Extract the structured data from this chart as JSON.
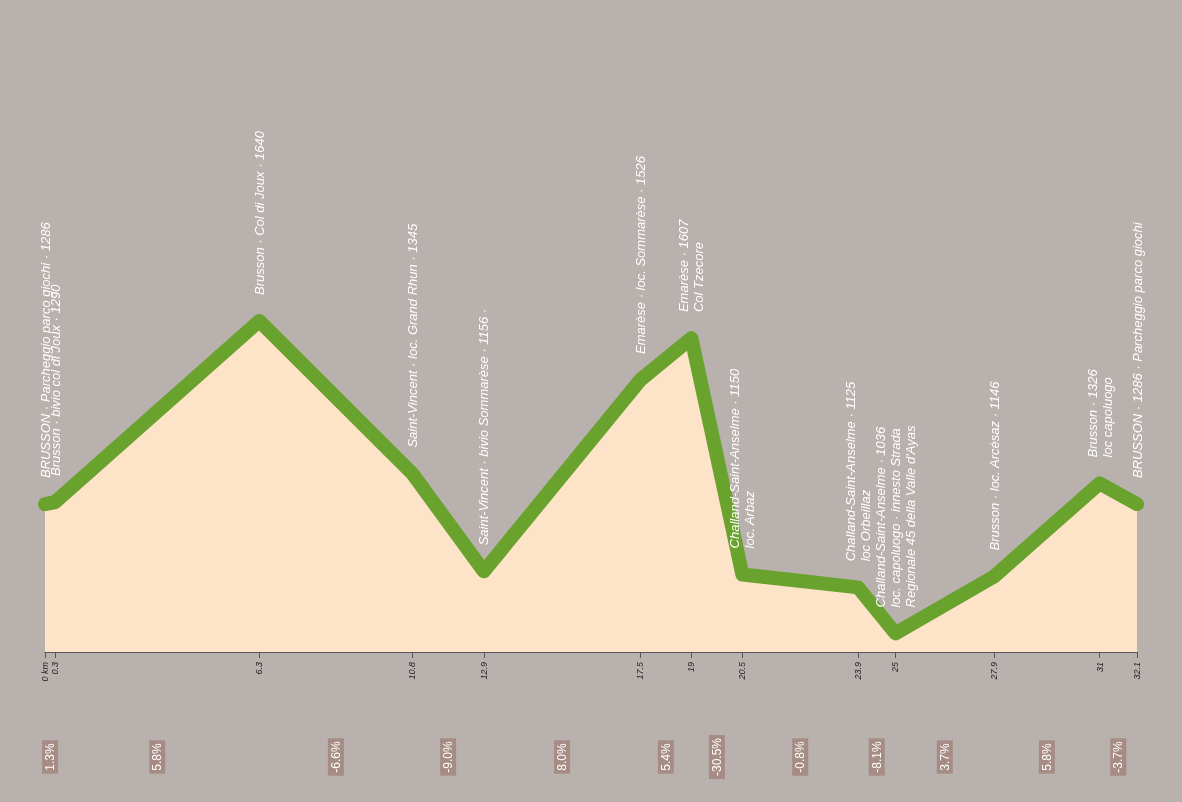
{
  "chart_data": {
    "type": "area",
    "x": [
      0,
      0.3,
      6.3,
      10.8,
      12.9,
      17.5,
      19,
      20.5,
      23.9,
      25,
      27.9,
      31,
      32.1
    ],
    "values": [
      1286,
      1290,
      1640,
      1345,
      1156,
      1526,
      1607,
      1150,
      1125,
      1036,
      1146,
      1326,
      1286
    ],
    "value_labels": [
      "BRUSSON · Parcheggio parco giochi · 1286",
      "Brusson · bivio col di Joux · 1290",
      "Brusson · Col di Joux · 1640",
      "Saint-Vincent · loc. Grand Rhun · 1345",
      "Saint-Vincent · bivio Sommarèse · 1156 ·",
      "Emarèse · loc. Sommarèse · 1526",
      "Emarèse · 1607\nCol Tzecore",
      "Challand-Saint-Anselme · 1150\nloc. Arbaz",
      "Challand-Saint-Anselme · 1125\nloc Orbeillaz",
      "Challand-Saint-Anselme · 1036\nloc. capoluogo · innesto Strada\nRegionale 45 della Valle d'Ayas",
      "Brusson · loc. Arcésaz · 1146",
      "Brusson · 1326\nloc capoluogo",
      "BRUSSON · 1286 · Parcheggio parco giochi"
    ],
    "color": "#6aa22e",
    "xlim": [
      0,
      32.1
    ],
    "xticks": [
      {
        "value": 0,
        "label": "0 km"
      },
      0.3,
      6.3,
      10.8,
      12.9,
      17.5,
      19,
      20.5,
      23.9,
      25,
      27.9,
      31,
      32.1
    ],
    "annotations": [
      "1.3%",
      "5.8%",
      "-6.6%",
      "-9.0%",
      "8.0%",
      "5.4%",
      "-30.5%",
      "-0.8%",
      "-8.1%",
      "3.7%",
      "5.8%",
      "-3.7%"
    ],
    "grid": false,
    "marker": "none"
  }
}
